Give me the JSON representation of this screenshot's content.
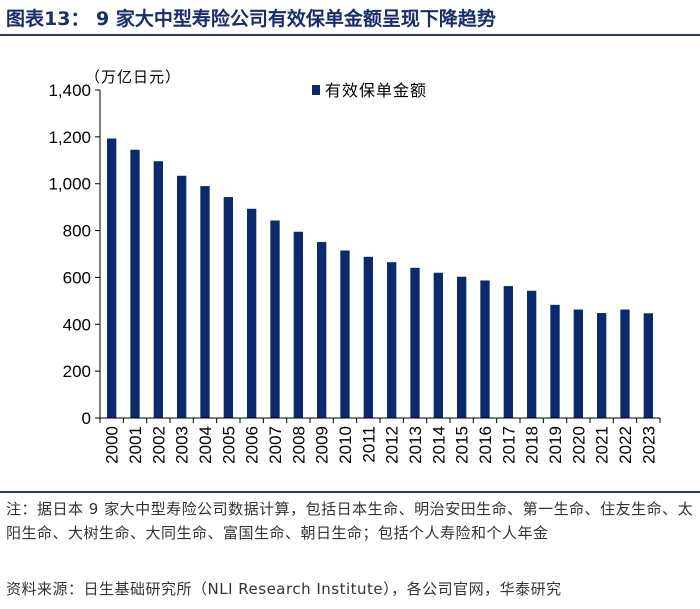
{
  "figure": {
    "title": "图表13：  9 家大中型寿险公司有效保单金额呈现下降趋势"
  },
  "chart_data": {
    "type": "bar",
    "title": "9 家大中型寿险公司有效保单金额呈现下降趋势",
    "ylabel": "（万亿日元）",
    "xlabel": "",
    "ylim": [
      0,
      1400
    ],
    "yticks": [
      0,
      200,
      400,
      600,
      800,
      1000,
      1200,
      1400
    ],
    "ytick_labels": [
      "0",
      "200",
      "400",
      "600",
      "800",
      "1,000",
      "1,200",
      "1,400"
    ],
    "legend": "top-center",
    "grid": false,
    "bar_color": "#0b2a6b",
    "series": [
      {
        "name": "有效保单金额",
        "values": [
          1193,
          1145,
          1096,
          1034,
          990,
          943,
          893,
          843,
          795,
          751,
          715,
          688,
          665,
          641,
          620,
          603,
          587,
          563,
          543,
          483,
          463,
          448,
          463,
          447
        ]
      }
    ],
    "categories": [
      "2000",
      "2001",
      "2002",
      "2003",
      "2004",
      "2005",
      "2006",
      "2007",
      "2008",
      "2009",
      "2010",
      "2011",
      "2012",
      "2013",
      "2014",
      "2015",
      "2016",
      "2017",
      "2018",
      "2019",
      "2020",
      "2021",
      "2022",
      "2023"
    ]
  },
  "footer": {
    "note": "注：据日本 9 家大中型寿险公司数据计算，包括日本生命、明治安田生命、第一生命、住友生命、太阳生命、大树生命、大同生命、富国生命、朝日生命；包括个人寿险和个人年金",
    "source": "资料来源：日生基础研究所（NLI Research Institute），各公司官网，华泰研究"
  }
}
